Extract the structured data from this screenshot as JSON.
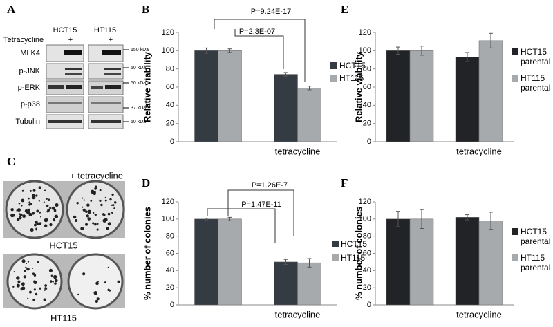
{
  "panels": [
    "A",
    "B",
    "C",
    "D",
    "E",
    "F"
  ],
  "blot": {
    "columns": [
      "HCT15",
      "HT115"
    ],
    "treatment": "Tetracycline",
    "treatment_marks": [
      "+",
      "+"
    ],
    "rows": [
      "MLK4",
      "p-JNK",
      "p-ERK",
      "p-p38",
      "Tubulin"
    ],
    "size_markers": [
      "150 kDa",
      "50 kDa",
      "50 kDa",
      "37 kDa",
      "50 kDa"
    ]
  },
  "colonies": {
    "treatment": "+ tetracycline",
    "cells": [
      "HCT15",
      "HT115"
    ]
  },
  "chart_data": [
    {
      "type": "bar",
      "ylabel": "Relative viability",
      "categories": [
        null,
        "tetracycline"
      ],
      "series": [
        {
          "name": "HCT15",
          "color": "#343b42",
          "values": [
            100,
            74
          ],
          "errors": [
            3,
            2
          ]
        },
        {
          "name": "HT115",
          "color": "#a7aaad",
          "values": [
            100,
            59
          ],
          "errors": [
            2,
            2
          ]
        }
      ],
      "annotations": [
        "P=9.24E-17",
        "P=2.3E-07"
      ],
      "ylim": [
        0,
        120
      ],
      "yticks": [
        0,
        20,
        40,
        60,
        80,
        100,
        120
      ]
    },
    {
      "type": "bar",
      "ylabel": "% number of colonies",
      "categories": [
        null,
        "tetracycline"
      ],
      "series": [
        {
          "name": "HCT15",
          "color": "#343b42",
          "values": [
            100,
            50
          ],
          "errors": [
            1,
            3
          ]
        },
        {
          "name": "HT115",
          "color": "#a7aaad",
          "values": [
            100,
            49
          ],
          "errors": [
            2,
            5
          ]
        }
      ],
      "annotations": [
        "P=1.26E-7",
        "P=1.47E-11"
      ],
      "ylim": [
        0,
        120
      ],
      "yticks": [
        0,
        20,
        40,
        60,
        80,
        100,
        120
      ]
    },
    {
      "type": "bar",
      "ylabel": "Relative viability",
      "categories": [
        null,
        "tetracycline"
      ],
      "series": [
        {
          "name": "HCT15 parental",
          "color": "#222326",
          "values": [
            100,
            93
          ],
          "errors": [
            4,
            5
          ]
        },
        {
          "name": "HT115 parental",
          "color": "#a7aaad",
          "values": [
            100,
            111
          ],
          "errors": [
            5,
            8
          ]
        }
      ],
      "ylim": [
        0,
        120
      ],
      "yticks": [
        0,
        20,
        40,
        60,
        80,
        100,
        120
      ]
    },
    {
      "type": "bar",
      "ylabel": "% number of colonies",
      "categories": [
        null,
        "tetracycline"
      ],
      "series": [
        {
          "name": "HCT15 parental",
          "color": "#222326",
          "values": [
            100,
            102
          ],
          "errors": [
            9,
            3
          ]
        },
        {
          "name": "HT115 parental",
          "color": "#a7aaad",
          "values": [
            100,
            98
          ],
          "errors": [
            11,
            10
          ]
        }
      ],
      "ylim": [
        0,
        120
      ],
      "yticks": [
        0,
        20,
        40,
        60,
        80,
        100,
        120
      ]
    }
  ]
}
